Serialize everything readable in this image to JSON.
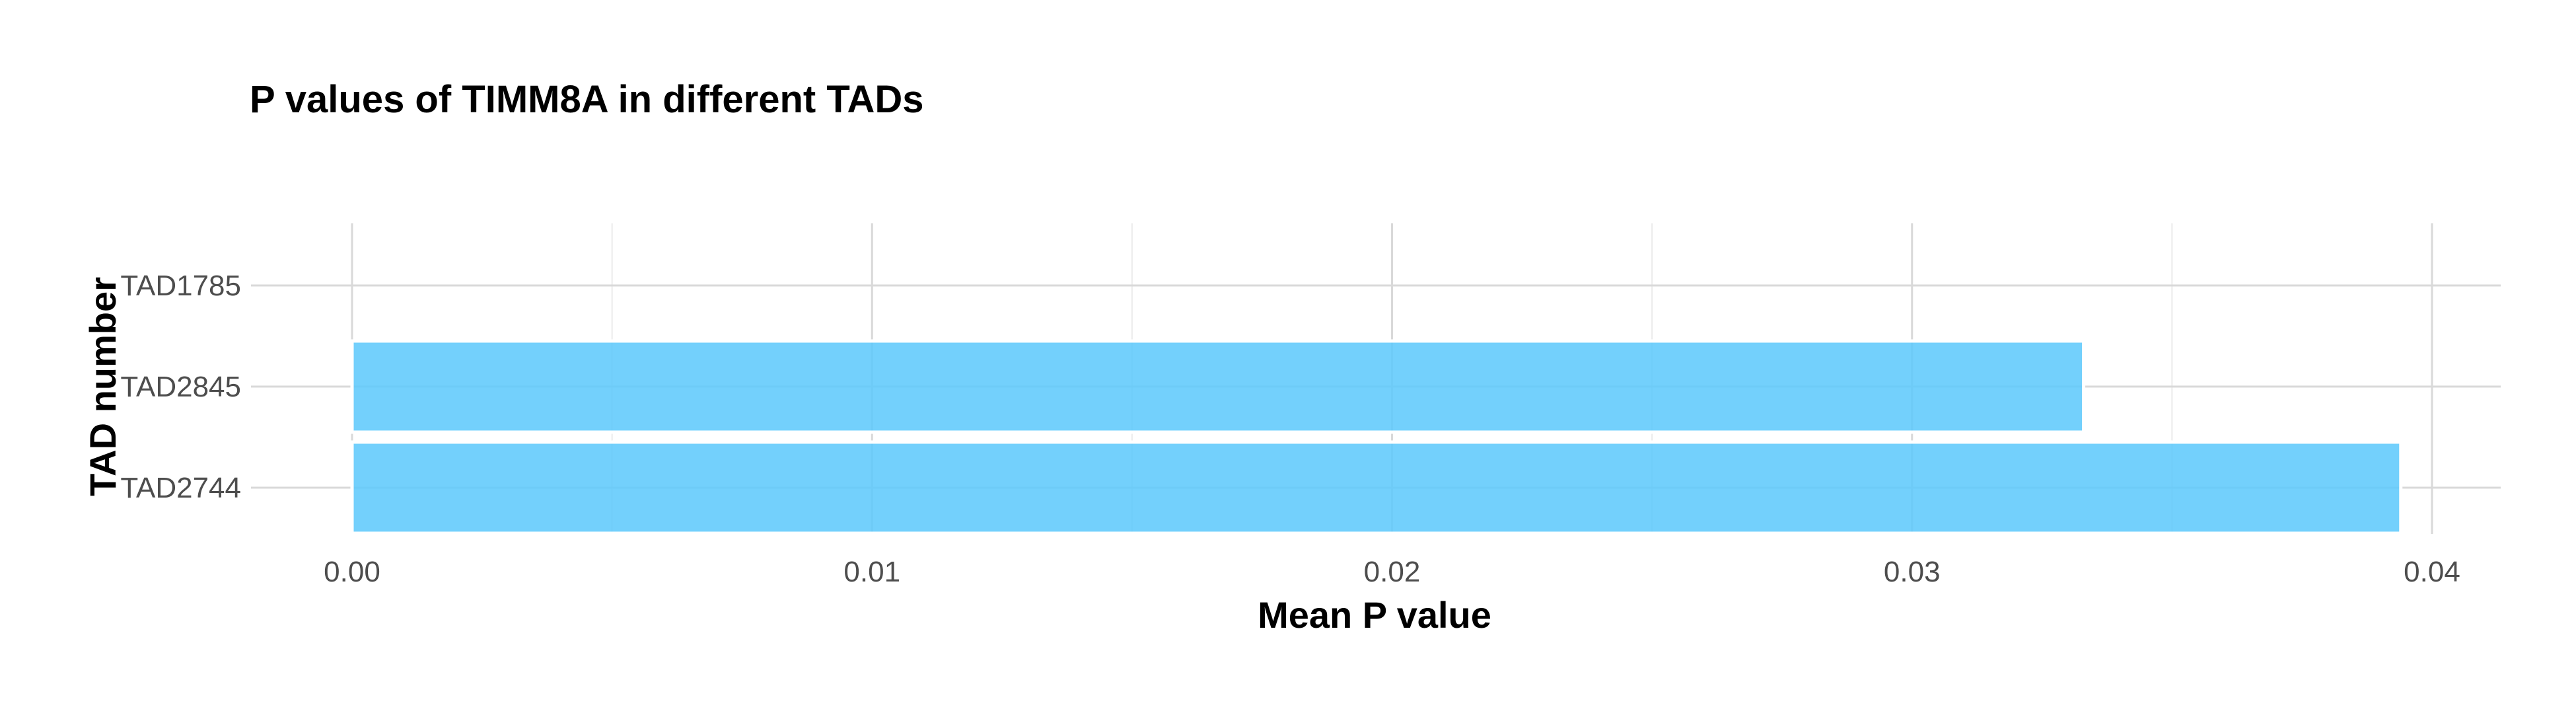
{
  "chart_data": {
    "type": "bar",
    "orientation": "horizontal",
    "title": "P values of TIMM8A in different TADs",
    "xlabel": "Mean P value",
    "ylabel": "TAD number",
    "categories": [
      "TAD1785",
      "TAD2845",
      "TAD2744"
    ],
    "values": [
      0,
      0.0333,
      0.0394
    ],
    "xlim": [
      0,
      0.0414
    ],
    "xticks": [
      0,
      0.01,
      0.02,
      0.03,
      0.04
    ],
    "xtick_labels": [
      "0.00",
      "0.01",
      "0.02",
      "0.03",
      "0.04"
    ],
    "grid": true,
    "legend": "none",
    "bar_color": "#5bc8fb"
  }
}
